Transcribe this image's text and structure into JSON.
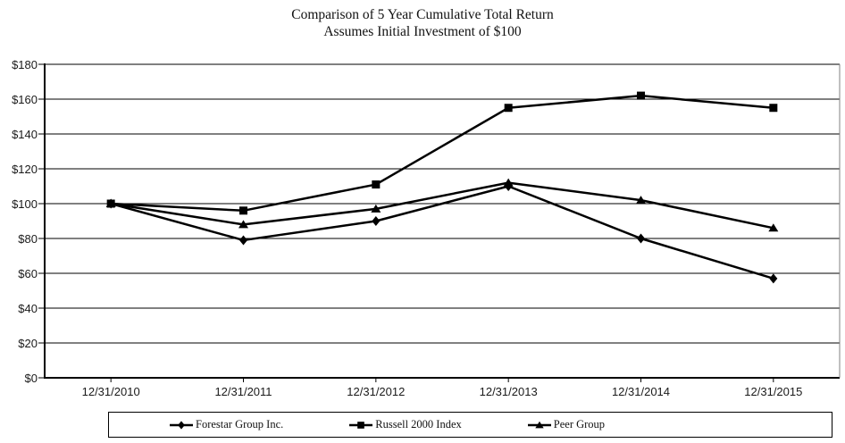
{
  "chart_data": {
    "type": "line",
    "title": "Comparison of 5 Year Cumulative Total Return",
    "subtitle": "Assumes Initial Investment of $100",
    "categories": [
      "12/31/2010",
      "12/31/2011",
      "12/31/2012",
      "12/31/2013",
      "12/31/2014",
      "12/31/2015"
    ],
    "series": [
      {
        "name": "Forestar Group Inc.",
        "marker": "diamond",
        "values": [
          100,
          79,
          90,
          110,
          80,
          57
        ]
      },
      {
        "name": "Russell 2000 Index",
        "marker": "square",
        "values": [
          100,
          96,
          111,
          155,
          162,
          155
        ]
      },
      {
        "name": "Peer Group",
        "marker": "triangle",
        "values": [
          100,
          88,
          97,
          112,
          102,
          86
        ]
      }
    ],
    "ylim": [
      0,
      180
    ],
    "ytick_step": 20,
    "ytick_labels": [
      "$0",
      "$20",
      "$40",
      "$60",
      "$80",
      "$100",
      "$120",
      "$140",
      "$160",
      "$180"
    ],
    "grid": true,
    "legend_position": "bottom",
    "line_color": "#000000",
    "grid_color": "#000000",
    "border_color": "#808080"
  }
}
